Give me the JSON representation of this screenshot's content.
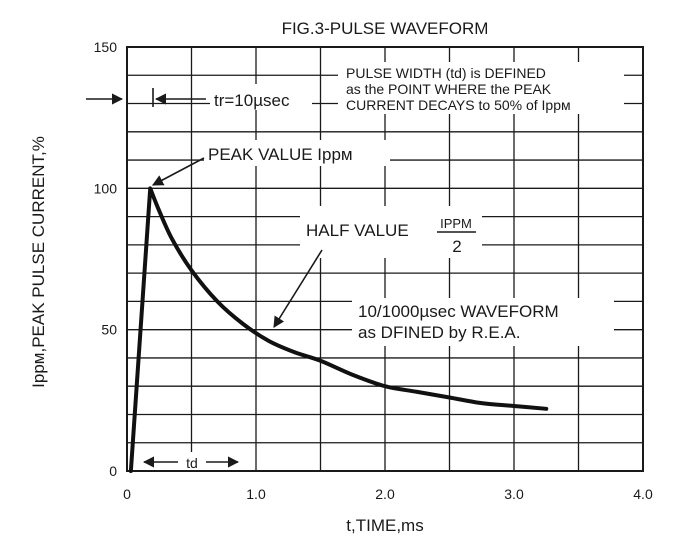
{
  "chart_data": {
    "type": "line",
    "title": "FIG.3-PULSE WAVEFORM",
    "xlabel": "t,TIME,ms",
    "ylabel_main": "Ippм,PEAK PULSE CURRENT,%",
    "xlim": [
      0,
      4.0
    ],
    "ylim": [
      0,
      150
    ],
    "x_ticks": [
      0,
      1.0,
      2.0,
      3.0,
      4.0
    ],
    "x_tick_labels": [
      "0",
      "1.0",
      "2.0",
      "3.0",
      "4.0"
    ],
    "y_ticks": [
      0,
      50,
      100,
      150
    ],
    "y_tick_labels": [
      "0",
      "50",
      "100",
      "150"
    ],
    "grid": true,
    "series": [
      {
        "x": [
          0.03,
          0.18,
          0.25,
          0.35,
          0.5,
          0.7,
          0.9,
          1.1,
          1.3,
          1.5,
          1.75,
          2.0,
          2.25,
          2.5,
          2.75,
          3.0,
          3.25
        ],
        "y": [
          0,
          100,
          92,
          82,
          71,
          60,
          52,
          46,
          42,
          39,
          34,
          30,
          28,
          26,
          24,
          23,
          22
        ]
      }
    ],
    "annotations": {
      "pulse_width_line1": "PULSE WIDTH (td) is DEFINED",
      "pulse_width_line2": "as the POINT WHERE the PEAK",
      "pulse_width_line3": "CURRENT DECAYS to 50% of Ippм",
      "rise_time": "tr=10µsec",
      "peak_value": "PEAK VALUE Ippм",
      "half_value": "HALF VALUE",
      "half_value_numerator": "IPPM",
      "half_value_denominator": "2",
      "waveform_line1": "10/1000µsec WAVEFORM",
      "waveform_line2": "as DFINED by R.E.A.",
      "td_label": "td"
    }
  }
}
